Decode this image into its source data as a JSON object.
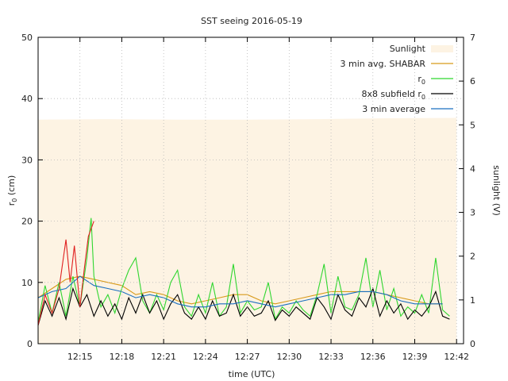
{
  "chart_data": {
    "type": "line",
    "title": "SST seeing 2016-05-19",
    "xlabel": "time (UTC)",
    "ylabel_left": "r0 (cm)",
    "ylabel_right": "sunlight (V)",
    "x_unit": "minutes after 12:00 UTC",
    "xlim": [
      12.0,
      42.5
    ],
    "ylim_left": [
      0,
      50
    ],
    "ylim_right": [
      0,
      7
    ],
    "x_ticks": [
      "12:15",
      "12:18",
      "12:21",
      "12:24",
      "12:27",
      "12:30",
      "12:33",
      "12:36",
      "12:39",
      "12:42"
    ],
    "x_tick_minutes": [
      15,
      18,
      21,
      24,
      27,
      30,
      33,
      36,
      39,
      42
    ],
    "y_ticks_left": [
      0,
      10,
      20,
      30,
      40,
      50
    ],
    "y_ticks_right": [
      0,
      1,
      2,
      3,
      4,
      5,
      6,
      7
    ],
    "grid": true,
    "legend_position": "top-right",
    "sunlight_fill": "#fdf3e3",
    "series": [
      {
        "name": "Sunlight",
        "axis": "right",
        "style": "area",
        "color": "#fdf3e3",
        "x": [
          12.0,
          17.0,
          22.0,
          27.0,
          32.0,
          37.0,
          42.0
        ],
        "values": [
          5.12,
          5.13,
          5.12,
          5.12,
          5.13,
          5.15,
          5.16
        ]
      },
      {
        "name": "3 min avg. SHABAR",
        "axis": "left",
        "style": "line",
        "color": "#d89a1a",
        "x": [
          12.0,
          13.0,
          14.0,
          15.0,
          16.0,
          17.0,
          18.0,
          19.0,
          20.0,
          21.0,
          22.0,
          23.0,
          24.0,
          25.0,
          26.0,
          27.0,
          28.0,
          29.0,
          30.0,
          31.0,
          32.0,
          33.0,
          34.0,
          35.0,
          36.0,
          37.0,
          38.0,
          39.0,
          40.0,
          41.0
        ],
        "values": [
          7.5,
          9.0,
          10.5,
          11.0,
          10.5,
          10.0,
          9.5,
          8.0,
          8.5,
          8.0,
          7.0,
          6.5,
          7.0,
          7.5,
          8.0,
          8.0,
          7.0,
          6.5,
          7.0,
          7.5,
          8.0,
          8.5,
          8.5,
          8.5,
          8.5,
          8.0,
          7.5,
          7.0,
          6.5,
          6.5
        ]
      },
      {
        "name": "r0",
        "axis": "left",
        "style": "line",
        "color": "#2fd62f",
        "x": [
          12.0,
          12.5,
          13.0,
          13.5,
          14.0,
          14.5,
          15.0,
          15.5,
          15.8,
          16.0,
          16.5,
          17.0,
          17.5,
          18.0,
          18.5,
          19.0,
          19.5,
          20.0,
          20.5,
          21.0,
          21.5,
          22.0,
          22.5,
          23.0,
          23.5,
          24.0,
          24.5,
          25.0,
          25.5,
          26.0,
          26.5,
          27.0,
          27.5,
          28.0,
          28.5,
          29.0,
          29.5,
          30.0,
          30.5,
          31.0,
          31.5,
          32.0,
          32.5,
          33.0,
          33.5,
          34.0,
          34.5,
          35.0,
          35.5,
          36.0,
          36.5,
          37.0,
          37.5,
          38.0,
          38.5,
          39.0,
          39.5,
          40.0,
          40.5,
          41.0,
          41.5
        ],
        "values": [
          3.5,
          9.5,
          5.0,
          10.0,
          4.5,
          11.0,
          6.0,
          14.0,
          20.5,
          11.0,
          6.0,
          8.0,
          5.0,
          9.0,
          12.0,
          14.0,
          7.0,
          5.0,
          8.0,
          5.5,
          10.0,
          12.0,
          6.0,
          4.5,
          8.0,
          5.0,
          10.0,
          4.5,
          6.0,
          13.0,
          5.0,
          7.0,
          5.5,
          6.0,
          10.0,
          4.0,
          6.0,
          5.0,
          7.0,
          5.5,
          4.5,
          8.0,
          13.0,
          5.0,
          11.0,
          6.0,
          5.5,
          8.0,
          14.0,
          6.0,
          12.0,
          5.5,
          9.0,
          4.5,
          6.0,
          5.0,
          8.0,
          5.0,
          14.0,
          5.5,
          4.5
        ]
      },
      {
        "name": "8x8 subfield r0",
        "axis": "left",
        "style": "line",
        "color": "#000000",
        "x": [
          12.0,
          12.5,
          13.0,
          13.5,
          14.0,
          14.5,
          15.0,
          15.5,
          16.0,
          16.5,
          17.0,
          17.5,
          18.0,
          18.5,
          19.0,
          19.5,
          20.0,
          20.5,
          21.0,
          21.5,
          22.0,
          22.5,
          23.0,
          23.5,
          24.0,
          24.5,
          25.0,
          25.5,
          26.0,
          26.5,
          27.0,
          27.5,
          28.0,
          28.5,
          29.0,
          29.5,
          30.0,
          30.5,
          31.0,
          31.5,
          32.0,
          32.5,
          33.0,
          33.5,
          34.0,
          34.5,
          35.0,
          35.5,
          36.0,
          36.5,
          37.0,
          37.5,
          38.0,
          38.5,
          39.0,
          39.5,
          40.0,
          40.5,
          41.0,
          41.5
        ],
        "values": [
          3.0,
          7.0,
          4.5,
          7.5,
          4.0,
          9.0,
          6.0,
          8.0,
          4.5,
          7.0,
          4.5,
          6.5,
          4.0,
          7.5,
          5.0,
          8.0,
          5.0,
          7.0,
          4.0,
          6.5,
          8.0,
          5.0,
          4.0,
          6.0,
          4.0,
          7.0,
          4.5,
          5.0,
          8.0,
          4.5,
          6.0,
          4.5,
          5.0,
          7.0,
          3.8,
          5.5,
          4.5,
          6.0,
          5.0,
          4.0,
          7.5,
          6.0,
          4.0,
          8.0,
          5.5,
          4.5,
          7.5,
          6.0,
          9.0,
          4.5,
          7.0,
          5.0,
          6.5,
          4.0,
          5.5,
          4.5,
          6.0,
          8.5,
          4.5,
          4.0
        ]
      },
      {
        "name": "3 min average",
        "axis": "left",
        "style": "line",
        "color": "#1a6fc0",
        "x": [
          12.0,
          13.0,
          14.0,
          15.0,
          16.0,
          17.0,
          18.0,
          19.0,
          20.0,
          21.0,
          22.0,
          23.0,
          24.0,
          25.0,
          26.0,
          27.0,
          28.0,
          29.0,
          30.0,
          31.0,
          32.0,
          33.0,
          34.0,
          35.0,
          36.0,
          37.0,
          38.0,
          39.0,
          40.0,
          41.0
        ],
        "values": [
          7.5,
          8.5,
          9.0,
          11.0,
          9.5,
          9.0,
          8.5,
          7.5,
          8.0,
          7.5,
          6.5,
          6.0,
          6.0,
          6.5,
          6.5,
          7.0,
          6.5,
          6.0,
          6.5,
          7.0,
          7.5,
          8.0,
          8.0,
          8.5,
          8.5,
          8.0,
          7.0,
          6.5,
          6.5,
          6.5
        ]
      },
      {
        "name": "",
        "axis": "left",
        "style": "line",
        "color": "#e02020",
        "x": [
          12.0,
          12.5,
          13.0,
          13.5,
          14.0,
          14.3,
          14.6,
          15.0,
          15.3,
          15.6,
          16.0
        ],
        "values": [
          3.0,
          8.0,
          5.0,
          9.0,
          17.0,
          10.0,
          16.0,
          6.0,
          12.0,
          17.5,
          20.0
        ]
      }
    ]
  }
}
